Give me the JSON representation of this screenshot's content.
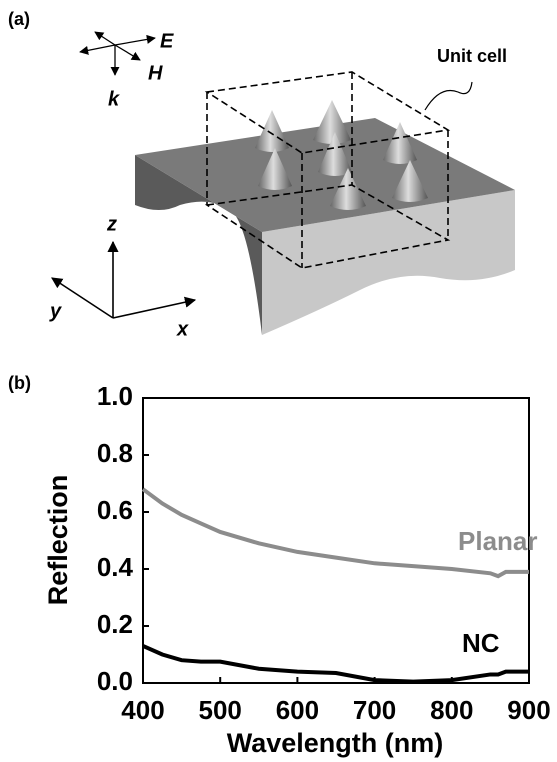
{
  "diagram": {
    "panel_label": "(a)",
    "e_label": "E",
    "h_label": "H",
    "k_label": "k",
    "unit_cell_label": "Unit cell",
    "z_label": "z",
    "y_label": "y",
    "x_label": "x"
  },
  "chart_data": {
    "type": "line",
    "panel_label": "(b)",
    "x_label": "Wavelength (nm)",
    "y_label": "Reflection",
    "x": [
      400,
      425,
      450,
      475,
      500,
      550,
      600,
      650,
      700,
      750,
      800,
      850,
      860,
      870,
      900
    ],
    "series": [
      {
        "name": "Planar",
        "color": "#8c8c8c",
        "values": [
          0.68,
          0.63,
          0.59,
          0.56,
          0.53,
          0.49,
          0.46,
          0.44,
          0.42,
          0.41,
          0.4,
          0.385,
          0.375,
          0.39,
          0.39
        ]
      },
      {
        "name": "NC",
        "color": "#000000",
        "values": [
          0.13,
          0.1,
          0.08,
          0.075,
          0.075,
          0.05,
          0.04,
          0.035,
          0.01,
          0.005,
          0.01,
          0.03,
          0.03,
          0.04,
          0.04
        ]
      }
    ],
    "xlim": [
      400,
      900
    ],
    "ylim": [
      0,
      1
    ],
    "xticks": [
      400,
      500,
      600,
      700,
      800,
      900
    ],
    "yticks": [
      {
        "value": 0,
        "label": "0.0"
      },
      0.2,
      0.4,
      0.6,
      0.8,
      {
        "value": 1,
        "label": "1.0"
      }
    ]
  }
}
